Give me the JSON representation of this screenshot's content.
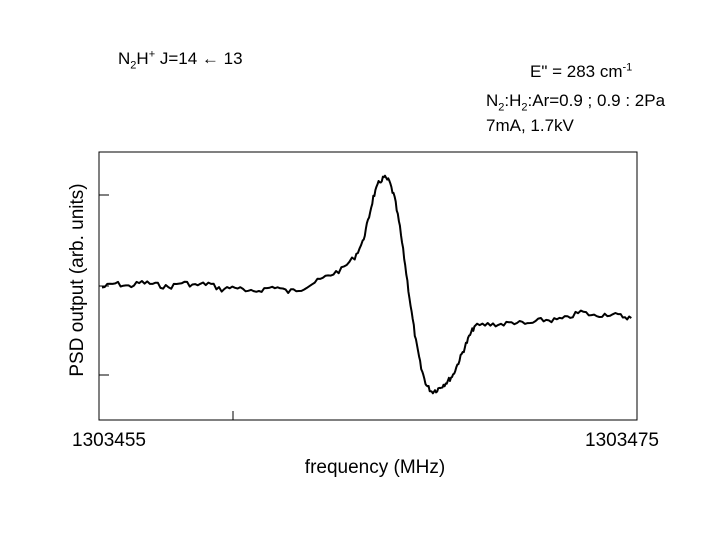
{
  "title": {
    "species_a": "N",
    "species_a_sub": "2",
    "species_b": "H",
    "species_b_sup": "+",
    "transition": " J=14 ← 13"
  },
  "info": {
    "energy_label": "E\" = 283 cm",
    "energy_sup": "-1",
    "gas": {
      "p1": "N",
      "s1": "2",
      "p2": ":H",
      "s2": "2",
      "p3": ":Ar=0.9 ; 0.9 : 2Pa"
    },
    "discharge": "7mA, 1.7kV"
  },
  "chart_data": {
    "type": "line",
    "title": "",
    "xlabel": "frequency (MHz)",
    "ylabel": "PSD output (arb. units)",
    "x_tick_labels": [
      "1303455",
      "1303475"
    ],
    "xlim": [
      1303455,
      1303475
    ],
    "ylim": [
      -1.25,
      1.25
    ],
    "grid": false,
    "series": [
      {
        "x": [
          1303455.0,
          1303455.5,
          1303456.0,
          1303456.5,
          1303457.0,
          1303457.5,
          1303458.0,
          1303458.5,
          1303459.0,
          1303459.5,
          1303460.0,
          1303460.5,
          1303461.0,
          1303461.5,
          1303462.0,
          1303462.5,
          1303463.0,
          1303463.5,
          1303464.0,
          1303464.5,
          1303464.8,
          1303465.0,
          1303465.2,
          1303465.4,
          1303465.6,
          1303465.8,
          1303466.0,
          1303466.2,
          1303466.4,
          1303466.6,
          1303466.8,
          1303467.0,
          1303467.2,
          1303467.4,
          1303467.6,
          1303467.8,
          1303468.0,
          1303468.2,
          1303468.4,
          1303468.6,
          1303468.8,
          1303469.0,
          1303469.5,
          1303470.0,
          1303470.5,
          1303471.0,
          1303471.5,
          1303472.0,
          1303472.5,
          1303473.0,
          1303473.5,
          1303474.0,
          1303474.5,
          1303474.9
        ],
        "y": [
          -0.01,
          0.03,
          0.0,
          0.04,
          0.02,
          -0.01,
          0.04,
          0.01,
          0.03,
          -0.03,
          0.0,
          -0.06,
          -0.03,
          0.0,
          -0.05,
          -0.02,
          0.04,
          0.1,
          0.16,
          0.28,
          0.42,
          0.62,
          0.85,
          0.98,
          1.04,
          1.0,
          0.84,
          0.56,
          0.2,
          -0.18,
          -0.52,
          -0.78,
          -0.94,
          -1.0,
          -0.98,
          -0.94,
          -0.9,
          -0.84,
          -0.72,
          -0.6,
          -0.48,
          -0.38,
          -0.36,
          -0.36,
          -0.34,
          -0.36,
          -0.32,
          -0.32,
          -0.3,
          -0.24,
          -0.28,
          -0.26,
          -0.28,
          -0.3
        ]
      }
    ]
  }
}
